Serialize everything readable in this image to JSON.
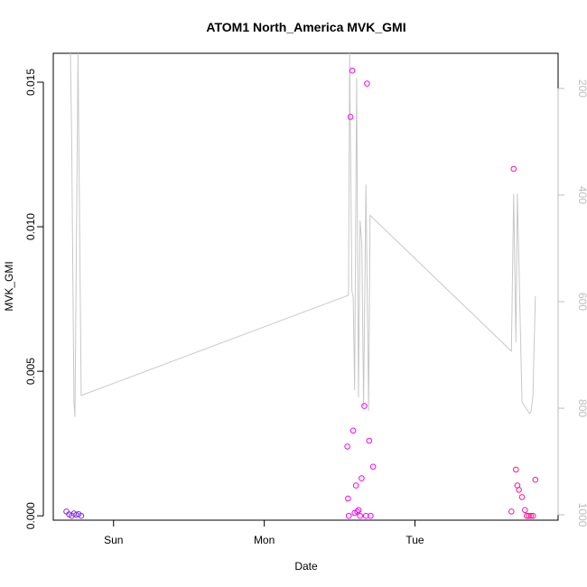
{
  "chart_data": {
    "type": "scatter",
    "title": "ATOM1 North_America MVK_GMI",
    "xlabel": "Date",
    "ylabel": "MVK_GMI",
    "x_ticks": [
      "Sun",
      "Mon",
      "Tue"
    ],
    "x_ticks_pos": [
      1,
      2,
      3
    ],
    "xlim": [
      0.6,
      3.95
    ],
    "ylim": [
      -0.00015,
      0.016
    ],
    "y_ticks": [
      "0.000",
      "0.005",
      "0.010",
      "0.015"
    ],
    "y_ticks_val": [
      0.0,
      0.005,
      0.01,
      0.015
    ],
    "y2_ticks": [
      "200",
      "400",
      "600",
      "800",
      "1000"
    ],
    "y2_ticks_val": [
      200,
      400,
      600,
      800,
      1000
    ],
    "y2lim": [
      1010,
      134
    ],
    "colors": {
      "points_early": "#8a2be2",
      "points_mid": "#ff00ff",
      "points_late": "#ff1493",
      "line": "#c8c8c8",
      "axis": "#000000",
      "right_axis": "#bdbdbd"
    },
    "points": [
      {
        "x": 0.687,
        "y": 0.00015,
        "c": "early"
      },
      {
        "x": 0.705,
        "y": 5e-05,
        "c": "early"
      },
      {
        "x": 0.722,
        "y": 0.0,
        "c": "early"
      },
      {
        "x": 0.738,
        "y": 8e-05,
        "c": "early"
      },
      {
        "x": 0.753,
        "y": 3e-05,
        "c": "early"
      },
      {
        "x": 0.768,
        "y": 6e-05,
        "c": "early"
      },
      {
        "x": 0.785,
        "y": 0.0,
        "c": "early"
      },
      {
        "x": 2.551,
        "y": 0.0024,
        "c": "mid"
      },
      {
        "x": 2.556,
        "y": 0.0006,
        "c": "mid"
      },
      {
        "x": 2.561,
        "y": 0.0,
        "c": "mid"
      },
      {
        "x": 2.572,
        "y": 0.0138,
        "c": "mid"
      },
      {
        "x": 2.584,
        "y": 0.0154,
        "c": "mid"
      },
      {
        "x": 2.59,
        "y": 0.00295,
        "c": "mid"
      },
      {
        "x": 2.6,
        "y": 0.0001,
        "c": "mid"
      },
      {
        "x": 2.608,
        "y": 0.00105,
        "c": "mid"
      },
      {
        "x": 2.617,
        "y": 0.00015,
        "c": "mid"
      },
      {
        "x": 2.626,
        "y": 0.0002,
        "c": "mid"
      },
      {
        "x": 2.636,
        "y": 0.0,
        "c": "mid"
      },
      {
        "x": 2.646,
        "y": 0.0013,
        "c": "mid"
      },
      {
        "x": 2.664,
        "y": 0.0038,
        "c": "mid"
      },
      {
        "x": 2.675,
        "y": 0.0,
        "c": "mid"
      },
      {
        "x": 2.682,
        "y": 0.01495,
        "c": "mid"
      },
      {
        "x": 2.696,
        "y": 0.0026,
        "c": "mid"
      },
      {
        "x": 2.706,
        "y": 0.0,
        "c": "mid"
      },
      {
        "x": 2.722,
        "y": 0.0017,
        "c": "mid"
      },
      {
        "x": 3.64,
        "y": 0.00015,
        "c": "late"
      },
      {
        "x": 3.655,
        "y": 0.012,
        "c": "late"
      },
      {
        "x": 3.67,
        "y": 0.0016,
        "c": "late"
      },
      {
        "x": 3.68,
        "y": 0.00105,
        "c": "late"
      },
      {
        "x": 3.69,
        "y": 0.0009,
        "c": "late"
      },
      {
        "x": 3.71,
        "y": 0.00065,
        "c": "late"
      },
      {
        "x": 3.73,
        "y": 0.0002,
        "c": "late"
      },
      {
        "x": 3.742,
        "y": 0.0,
        "c": "late"
      },
      {
        "x": 3.756,
        "y": 0.0,
        "c": "late"
      },
      {
        "x": 3.77,
        "y": 0.0,
        "c": "late"
      },
      {
        "x": 3.784,
        "y": 0.0,
        "c": "late"
      },
      {
        "x": 3.799,
        "y": 0.00125,
        "c": "late"
      }
    ],
    "line_y2": [
      {
        "x": 0.714,
        "y2": 134
      },
      {
        "x": 0.722,
        "y2": 300
      },
      {
        "x": 0.737,
        "y2": 790
      },
      {
        "x": 0.744,
        "y2": 816
      },
      {
        "x": 0.764,
        "y2": 134
      },
      {
        "x": 0.785,
        "y2": 776
      },
      {
        "x": 2.559,
        "y2": 588
      },
      {
        "x": 2.567,
        "y2": 134
      },
      {
        "x": 2.582,
        "y2": 580
      },
      {
        "x": 2.59,
        "y2": 592
      },
      {
        "x": 2.6,
        "y2": 766
      },
      {
        "x": 2.613,
        "y2": 180
      },
      {
        "x": 2.625,
        "y2": 780
      },
      {
        "x": 2.636,
        "y2": 448
      },
      {
        "x": 2.647,
        "y2": 490
      },
      {
        "x": 2.659,
        "y2": 797
      },
      {
        "x": 2.675,
        "y2": 380
      },
      {
        "x": 2.693,
        "y2": 805
      },
      {
        "x": 2.702,
        "y2": 438
      },
      {
        "x": 3.64,
        "y2": 693
      },
      {
        "x": 3.655,
        "y2": 398
      },
      {
        "x": 3.67,
        "y2": 676
      },
      {
        "x": 3.68,
        "y2": 397
      },
      {
        "x": 3.71,
        "y2": 788
      },
      {
        "x": 3.76,
        "y2": 810
      },
      {
        "x": 3.77,
        "y2": 806
      },
      {
        "x": 3.783,
        "y2": 778
      },
      {
        "x": 3.799,
        "y2": 590
      }
    ]
  }
}
